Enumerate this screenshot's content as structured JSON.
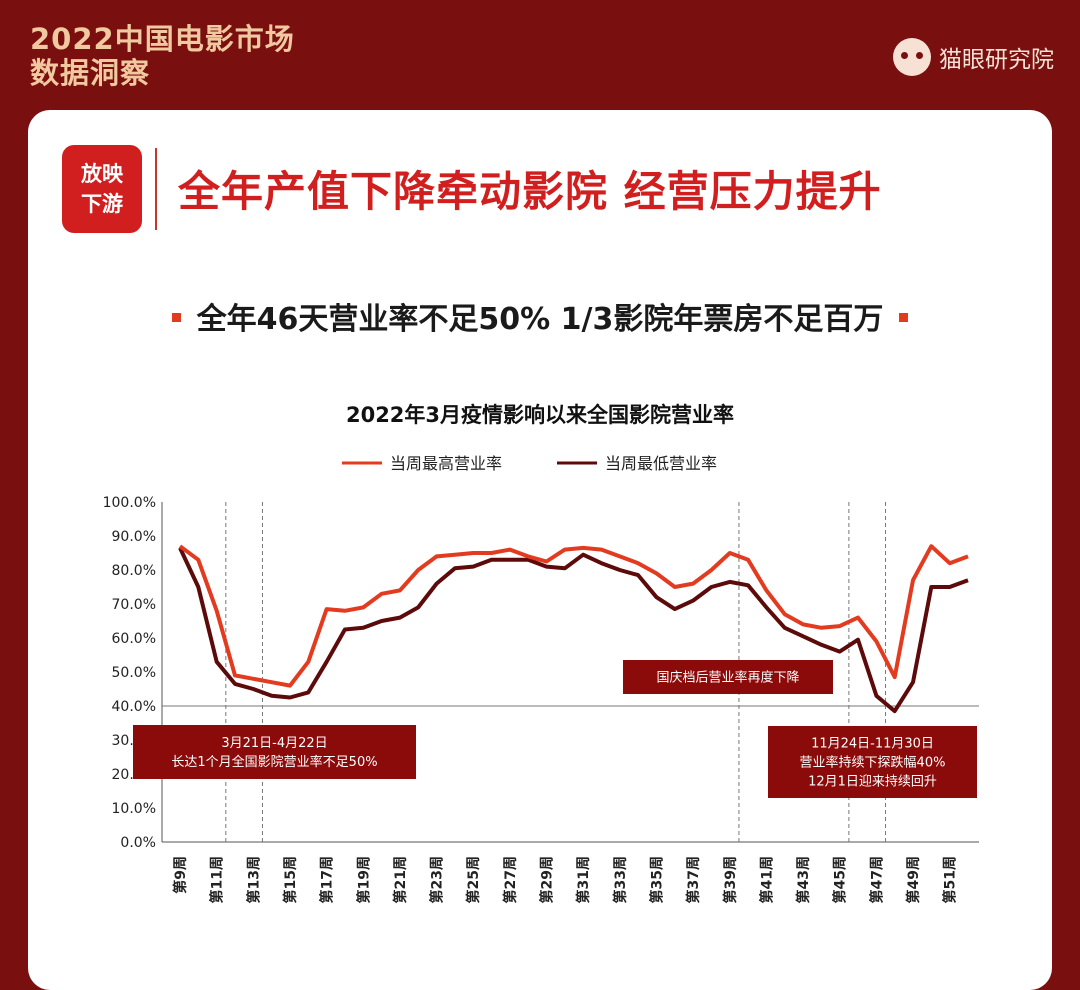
{
  "header": {
    "title_line1": "2022中国电影市场",
    "title_line2": "数据洞察",
    "brand": "猫眼研究院"
  },
  "section_tag": {
    "line1": "放映",
    "line2": "下游"
  },
  "headline": "全年产值下降牵动影院 经营压力提升",
  "subheadline": "全年46天营业率不足50% 1/3影院年票房不足百万",
  "colors": {
    "background": "#7a0f0f",
    "accent": "#d11f1f",
    "series_high": "#e23b1f",
    "series_low": "#5c0a0a",
    "annotation_box": "#8b0a0a"
  },
  "icons": {
    "brand_logo": "cat-face-icon"
  },
  "chart_data": {
    "type": "line",
    "title": "2022年3月疫情影响以来全国影院营业率",
    "ylim": [
      0,
      100
    ],
    "y_ticks": [
      "0.0%",
      "10.0%",
      "20.0%",
      "30.0%",
      "40.0%",
      "50.0%",
      "60.0%",
      "70.0%",
      "80.0%",
      "90.0%",
      "100.0%"
    ],
    "x": [
      "第9周",
      "第10周",
      "第11周",
      "第12周",
      "第13周",
      "第14周",
      "第15周",
      "第16周",
      "第17周",
      "第18周",
      "第19周",
      "第20周",
      "第21周",
      "第22周",
      "第23周",
      "第24周",
      "第25周",
      "第26周",
      "第27周",
      "第28周",
      "第29周",
      "第30周",
      "第31周",
      "第32周",
      "第33周",
      "第34周",
      "第35周",
      "第36周",
      "第37周",
      "第38周",
      "第39周",
      "第40周",
      "第41周",
      "第42周",
      "第43周",
      "第44周",
      "第45周",
      "第46周",
      "第47周",
      "第48周",
      "第49周",
      "第50周",
      "第51周",
      "第52周"
    ],
    "x_tick_labels": [
      "第9周",
      "第11周",
      "第13周",
      "第15周",
      "第17周",
      "第19周",
      "第21周",
      "第23周",
      "第25周",
      "第27周",
      "第29周",
      "第31周",
      "第33周",
      "第35周",
      "第37周",
      "第39周",
      "第41周",
      "第43周",
      "第45周",
      "第47周",
      "第49周",
      "第51周"
    ],
    "series": [
      {
        "name": "当周最高营业率",
        "color": "#e23b1f",
        "values": [
          87,
          83,
          68,
          49,
          48,
          47,
          46,
          53,
          68.5,
          68,
          69,
          73,
          74,
          80,
          84,
          84.5,
          85,
          85,
          86,
          84,
          82.5,
          86,
          86.5,
          86,
          84,
          82,
          79,
          75,
          76,
          80,
          85,
          83,
          74,
          67,
          64,
          63,
          63.5,
          66,
          59,
          48.5,
          77,
          87,
          82,
          84
        ]
      },
      {
        "name": "当周最低营业率",
        "color": "#5c0a0a",
        "values": [
          86.5,
          75,
          53,
          46.5,
          45,
          43,
          42.5,
          44,
          53,
          62.5,
          63,
          65,
          66,
          69,
          76,
          80.5,
          81,
          83,
          83,
          83,
          81,
          80.5,
          84.5,
          82,
          80,
          78.5,
          72,
          68.5,
          71,
          75,
          76.5,
          75.5,
          69,
          63,
          60.5,
          58,
          56,
          59.5,
          43,
          38.5,
          47,
          75,
          75,
          77
        ]
      }
    ],
    "grid": false,
    "legend": "top-center",
    "reference_line": {
      "value": 40
    },
    "dashed_lines_at": [
      "第12周",
      "第14周",
      "第40周",
      "第46周",
      "第48周"
    ],
    "annotations": [
      {
        "lines": [
          "3月21日-4月22日",
          "长达1个月全国影院营业率不足50%"
        ]
      },
      {
        "lines": [
          "国庆档后营业率再度下降"
        ]
      },
      {
        "lines": [
          "11月24日-11月30日",
          "营业率持续下探跌幅40%",
          "12月1日迎来持续回升"
        ]
      }
    ]
  }
}
